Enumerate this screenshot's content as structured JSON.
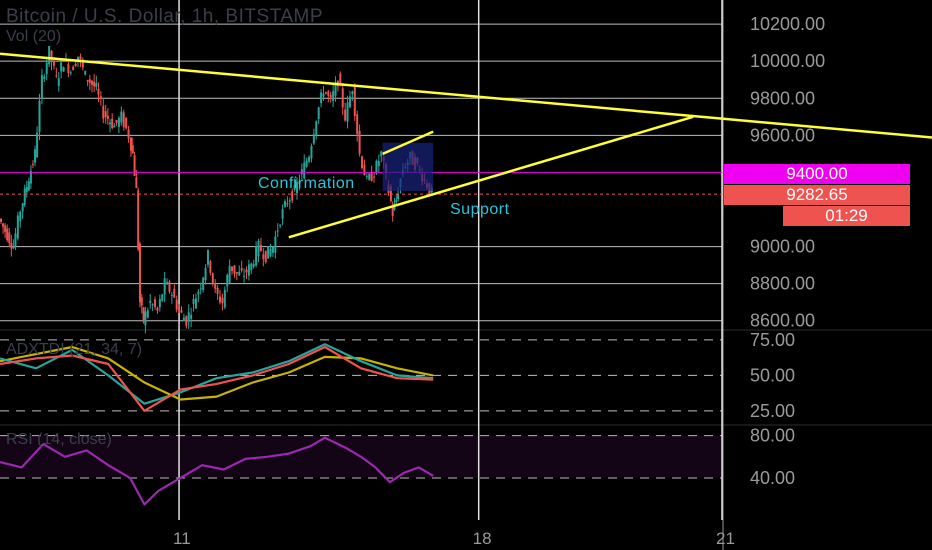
{
  "header": {
    "title": "Bitcoin / U.S. Dollar, 1h, BITSTAMP",
    "volume_label": "Vol (20)"
  },
  "indicators": {
    "adx_label": "ADXTDI (21, 34, 7)",
    "rsi_label": "RSI (14, close)"
  },
  "annotations": {
    "confirmation": "Confirmation",
    "support": "Support"
  },
  "price_tags": {
    "line_price": "9400.00",
    "last_price": "9282.65",
    "countdown": "01:29"
  },
  "colors": {
    "background": "#000000",
    "up_candle": "#26a69a",
    "down_candle": "#ef5350",
    "trendline": "#ffff33",
    "horizontal_line": "#f000f0",
    "rsi_line": "#9c27b0",
    "adx_line": "#c8b400"
  },
  "chart_data": [
    {
      "type": "candlestick",
      "title": "Bitcoin / U.S. Dollar, 1h, BITSTAMP",
      "y_axis_ticks": [
        10200,
        10000,
        9800,
        9600,
        9400,
        9282.65,
        9000,
        8800,
        8600
      ],
      "ylim": [
        8550,
        10330
      ],
      "x_axis_ticks": [
        "11",
        "18",
        "21"
      ],
      "close_path": [
        [
          0,
          9150
        ],
        [
          0.02,
          9000
        ],
        [
          0.03,
          9200
        ],
        [
          0.05,
          9500
        ],
        [
          0.06,
          9900
        ],
        [
          0.07,
          10050
        ],
        [
          0.08,
          9900
        ],
        [
          0.09,
          10000
        ],
        [
          0.1,
          9950
        ],
        [
          0.11,
          10030
        ],
        [
          0.12,
          9920
        ],
        [
          0.135,
          9850
        ],
        [
          0.145,
          9720
        ],
        [
          0.16,
          9650
        ],
        [
          0.17,
          9700
        ],
        [
          0.18,
          9600
        ],
        [
          0.185,
          9500
        ],
        [
          0.19,
          9300
        ],
        [
          0.195,
          8700
        ],
        [
          0.2,
          8600
        ],
        [
          0.21,
          8700
        ],
        [
          0.22,
          8650
        ],
        [
          0.23,
          8800
        ],
        [
          0.24,
          8750
        ],
        [
          0.25,
          8650
        ],
        [
          0.26,
          8600
        ],
        [
          0.27,
          8700
        ],
        [
          0.28,
          8800
        ],
        [
          0.29,
          8950
        ],
        [
          0.3,
          8750
        ],
        [
          0.31,
          8700
        ],
        [
          0.32,
          8900
        ],
        [
          0.33,
          8850
        ],
        [
          0.34,
          8850
        ],
        [
          0.35,
          8900
        ],
        [
          0.36,
          9000
        ],
        [
          0.37,
          8950
        ],
        [
          0.38,
          9000
        ],
        [
          0.39,
          9150
        ],
        [
          0.4,
          9250
        ],
        [
          0.41,
          9300
        ],
        [
          0.42,
          9400
        ],
        [
          0.43,
          9500
        ],
        [
          0.44,
          9700
        ],
        [
          0.45,
          9850
        ],
        [
          0.46,
          9780
        ],
        [
          0.47,
          9900
        ],
        [
          0.48,
          9700
        ],
        [
          0.49,
          9860
        ],
        [
          0.5,
          9500
        ],
        [
          0.51,
          9350
        ],
        [
          0.52,
          9400
        ],
        [
          0.53,
          9500
        ],
        [
          0.54,
          9300
        ],
        [
          0.545,
          9180
        ],
        [
          0.55,
          9250
        ],
        [
          0.56,
          9420
        ],
        [
          0.57,
          9480
        ],
        [
          0.58,
          9430
        ],
        [
          0.59,
          9360
        ],
        [
          0.6,
          9282.65
        ]
      ],
      "trendlines": [
        {
          "name": "resistance",
          "points": [
            [
              0.0,
              10040
            ],
            [
              1.0,
              9690
            ]
          ]
        },
        {
          "name": "support",
          "points": [
            [
              0.4,
              9050
            ],
            [
              0.96,
              9700
            ]
          ]
        },
        {
          "name": "channel-upper",
          "points": [
            [
              0.53,
              9500
            ],
            [
              0.6,
              9620
            ]
          ]
        }
      ],
      "horizontal_line": 9400
    },
    {
      "type": "line",
      "name": "ADXTDI (21, 34, 7)",
      "y_axis_ticks": [
        75,
        50,
        25
      ],
      "ylim": [
        15,
        82
      ],
      "series": [
        {
          "color": "#c8b400",
          "values": [
            [
              0,
              60
            ],
            [
              0.05,
              65
            ],
            [
              0.1,
              70
            ],
            [
              0.15,
              62
            ],
            [
              0.2,
              45
            ],
            [
              0.25,
              33
            ],
            [
              0.3,
              35
            ],
            [
              0.35,
              45
            ],
            [
              0.4,
              52
            ],
            [
              0.45,
              63
            ],
            [
              0.5,
              62
            ],
            [
              0.55,
              55
            ],
            [
              0.6,
              50
            ]
          ]
        },
        {
          "color": "#26a69a",
          "values": [
            [
              0,
              62
            ],
            [
              0.05,
              55
            ],
            [
              0.1,
              68
            ],
            [
              0.15,
              50
            ],
            [
              0.2,
              30
            ],
            [
              0.25,
              38
            ],
            [
              0.3,
              48
            ],
            [
              0.35,
              52
            ],
            [
              0.4,
              60
            ],
            [
              0.45,
              72
            ],
            [
              0.5,
              60
            ],
            [
              0.55,
              50
            ],
            [
              0.6,
              48
            ]
          ]
        },
        {
          "color": "#ef5350",
          "values": [
            [
              0,
              58
            ],
            [
              0.05,
              62
            ],
            [
              0.1,
              64
            ],
            [
              0.15,
              58
            ],
            [
              0.2,
              25
            ],
            [
              0.25,
              40
            ],
            [
              0.3,
              44
            ],
            [
              0.35,
              50
            ],
            [
              0.4,
              58
            ],
            [
              0.45,
              70
            ],
            [
              0.5,
              55
            ],
            [
              0.55,
              48
            ],
            [
              0.6,
              47
            ]
          ]
        }
      ]
    },
    {
      "type": "line",
      "name": "RSI (14, close)",
      "y_axis_ticks": [
        80,
        40
      ],
      "ylim": [
        5,
        90
      ],
      "series": [
        {
          "color": "#9c27b0",
          "values": [
            [
              0,
              55
            ],
            [
              0.03,
              50
            ],
            [
              0.06,
              72
            ],
            [
              0.09,
              60
            ],
            [
              0.12,
              66
            ],
            [
              0.15,
              52
            ],
            [
              0.18,
              40
            ],
            [
              0.2,
              15
            ],
            [
              0.22,
              28
            ],
            [
              0.25,
              40
            ],
            [
              0.28,
              52
            ],
            [
              0.31,
              48
            ],
            [
              0.34,
              58
            ],
            [
              0.37,
              60
            ],
            [
              0.4,
              63
            ],
            [
              0.43,
              70
            ],
            [
              0.45,
              78
            ],
            [
              0.48,
              68
            ],
            [
              0.5,
              60
            ],
            [
              0.52,
              50
            ],
            [
              0.54,
              36
            ],
            [
              0.56,
              45
            ],
            [
              0.58,
              50
            ],
            [
              0.6,
              42
            ]
          ]
        }
      ]
    }
  ]
}
